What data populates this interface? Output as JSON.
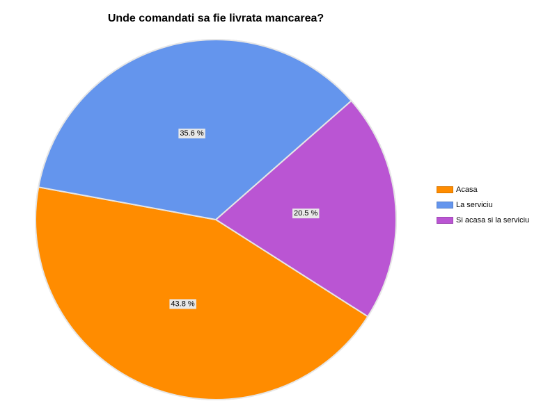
{
  "chart_data": {
    "type": "pie",
    "title": "Unde comandati sa fie livrata mancarea?",
    "legend_position": "right",
    "slices": [
      {
        "name": "Acasa",
        "value": 43.8,
        "label": "43.8 %",
        "color": "#ff8c00"
      },
      {
        "name": "La serviciu",
        "value": 35.6,
        "label": "35.6 %",
        "color": "#6495ed"
      },
      {
        "name": "Si acasa si la serviciu",
        "value": 20.5,
        "label": "20.5 %",
        "color": "#ba55d3"
      }
    ]
  }
}
